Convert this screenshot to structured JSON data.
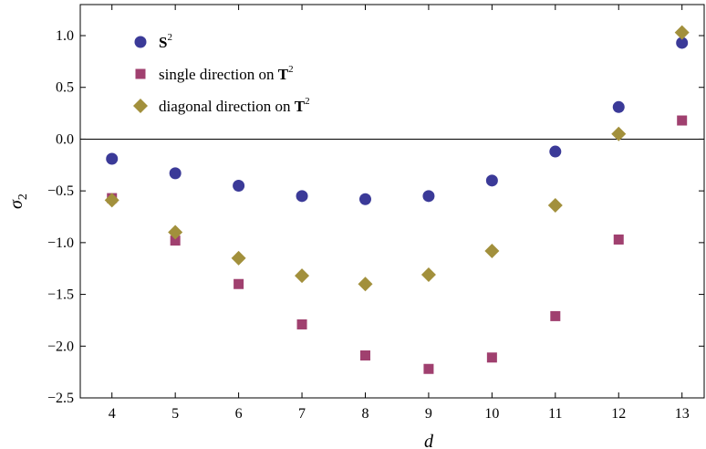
{
  "chart_data": {
    "type": "scatter",
    "title": "",
    "xlabel": "d",
    "ylabel": "σ",
    "ylabel_subscript": "2",
    "xlim": [
      3.5,
      13.35
    ],
    "ylim": [
      -2.5,
      1.3
    ],
    "x_ticks": [
      4,
      5,
      6,
      7,
      8,
      9,
      10,
      11,
      12,
      13
    ],
    "y_ticks": [
      1.0,
      0.5,
      0.0,
      -0.5,
      -1.0,
      -1.5,
      -2.0,
      -2.5
    ],
    "y_tick_labels": [
      "1.0",
      "0.5",
      "0.0",
      "−0.5",
      "−1.0",
      "−1.5",
      "−2.0",
      "−2.5"
    ],
    "zero_line": true,
    "grid": false,
    "legend_position": "top-left",
    "x": [
      4,
      5,
      6,
      7,
      8,
      9,
      10,
      11,
      12,
      13
    ],
    "series": [
      {
        "name": "S",
        "name_superscript": "2",
        "marker": "circle",
        "color": "#3b3a98",
        "values": [
          -0.19,
          -0.33,
          -0.45,
          -0.55,
          -0.58,
          -0.55,
          -0.4,
          -0.12,
          0.31,
          0.93
        ]
      },
      {
        "name_prefix": "single direction on ",
        "name": "T",
        "name_superscript": "2",
        "marker": "square",
        "color": "#a0406f",
        "values": [
          -0.57,
          -0.98,
          -1.4,
          -1.79,
          -2.09,
          -2.22,
          -2.11,
          -1.71,
          -0.97,
          0.18
        ]
      },
      {
        "name_prefix": "diagonal direction on ",
        "name": "T",
        "name_superscript": "2",
        "marker": "diamond",
        "color": "#a2903c",
        "values": [
          -0.59,
          -0.9,
          -1.15,
          -1.32,
          -1.4,
          -1.31,
          -1.08,
          -0.64,
          0.05,
          1.03
        ]
      }
    ]
  }
}
